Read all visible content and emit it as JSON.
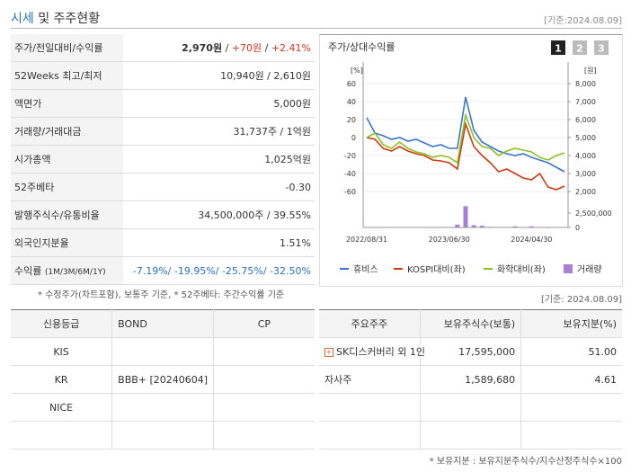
{
  "header": {
    "title_highlight": "시세",
    "title_rest": "및 주주현황",
    "date": "[기준:2024.08.09]"
  },
  "summary": {
    "rows": [
      {
        "label": "주가/전일대비/수익률",
        "value_parts": [
          "2,970원",
          " / ",
          "+70원",
          " / ",
          "+2.41%"
        ]
      },
      {
        "label": "52Weeks 최고/최저",
        "value": "10,940원 / 2,610원"
      },
      {
        "label": "액면가",
        "value": "5,000원"
      },
      {
        "label": "거래량/거래대금",
        "value": "31,737주 / 1억원"
      },
      {
        "label": "시가총액",
        "value": "1,025억원"
      },
      {
        "label": "52주베타",
        "value": "-0.30"
      },
      {
        "label": "발행주식수/유통비율",
        "value": "34,500,000주 / 39.55%"
      },
      {
        "label": "외국인지분율",
        "value": "1.51%"
      },
      {
        "label": "수익률",
        "label_note": "(1M/3M/6M/1Y)",
        "value": "-7.19%/ -19.95%/ -25.75%/ -32.50%"
      }
    ],
    "note": "* 수정주가(차트포함), 보통주 기준, * 52주베타: 주간수익률 기준"
  },
  "chart_data": {
    "type": "line",
    "title": "주가/상대수익률",
    "tabs": [
      "1",
      "2",
      "3"
    ],
    "y_unit": "[%]",
    "y2_unit": "[원]",
    "categories": [
      "2022/08/31",
      null,
      null,
      null,
      null,
      null,
      null,
      null,
      null,
      null,
      "2023/06/30",
      null,
      null,
      null,
      null,
      null,
      null,
      null,
      null,
      null,
      "2024/04/30",
      null,
      null,
      null,
      null
    ],
    "ylim": [
      -60,
      60
    ],
    "yticks": [
      60,
      40,
      20,
      0,
      -20,
      -40,
      -60
    ],
    "y2lim": [
      2000,
      8000
    ],
    "y2ticks": [
      {
        "value": 8000,
        "label": "8,000"
      },
      {
        "value": 7000,
        "label": "7,000"
      },
      {
        "value": 6000,
        "label": "6,000"
      },
      {
        "value": 5000,
        "label": "5,000"
      },
      {
        "value": 4000,
        "label": "4,000"
      },
      {
        "value": 3000,
        "label": "3,000"
      },
      {
        "value": 2000,
        "label": "2,000"
      }
    ],
    "volume_lim": [
      0,
      3750000
    ],
    "volume_ticks": [
      {
        "value": 2500000,
        "label": "2,500,000"
      },
      0
    ],
    "grid": true,
    "series": [
      {
        "name": "휴비스",
        "color": "#3a75d1",
        "values": [
          22,
          5,
          2,
          -2,
          0,
          -4,
          -2,
          -6,
          -10,
          -8,
          -12,
          -12,
          45,
          8,
          -5,
          -10,
          -15,
          -18,
          -20,
          -18,
          -22,
          -25,
          -28,
          -33,
          -38
        ]
      },
      {
        "name": "KOSPI대비(좌)",
        "color": "#d2380f",
        "values": [
          0,
          -2,
          -12,
          -15,
          -10,
          -15,
          -18,
          -20,
          -25,
          -26,
          -28,
          -35,
          15,
          -10,
          -20,
          -28,
          -38,
          -35,
          -40,
          -45,
          -47,
          -40,
          -55,
          -58,
          -54
        ]
      },
      {
        "name": "화학대비(좌)",
        "color": "#8cc220",
        "values": [
          0,
          5,
          -8,
          -12,
          -5,
          -12,
          -16,
          -18,
          -22,
          -20,
          -22,
          -28,
          25,
          0,
          -10,
          -12,
          -20,
          -15,
          -12,
          -14,
          -16,
          -22,
          -25,
          -20,
          -17
        ]
      },
      {
        "name": "거래량",
        "color": "#a77fd6",
        "type": "bar",
        "axis": "volume",
        "values": [
          50000,
          40000,
          30000,
          20000,
          30000,
          20000,
          20000,
          20000,
          30000,
          20000,
          30000,
          500000,
          3700000,
          400000,
          300000,
          100000,
          80000,
          60000,
          200000,
          50000,
          200000,
          60000,
          100000,
          50000,
          40000
        ]
      }
    ]
  },
  "date2": "[기준: 2024.08.09]",
  "credit_table": {
    "header": [
      "신용등급",
      "BOND",
      "CP"
    ],
    "rows": [
      [
        "KIS",
        null,
        null
      ],
      [
        "KR",
        "BBB+ [20240604]",
        null
      ],
      [
        "NICE",
        null,
        null
      ],
      [
        null,
        null,
        null
      ]
    ]
  },
  "shareholder_table": {
    "header": [
      "주요주주",
      "보유주식수(보통)",
      "보유지분(%)"
    ],
    "rows": [
      [
        "SK디스커버리 외 1인",
        "17,595,000",
        "51.00"
      ],
      [
        "자사주",
        "1,589,680",
        "4.61"
      ],
      [
        null,
        null,
        null
      ],
      [
        null,
        null,
        null
      ]
    ]
  },
  "footnote": "* 보유지분 : 보유지분주식수/지수산정주식수×100"
}
